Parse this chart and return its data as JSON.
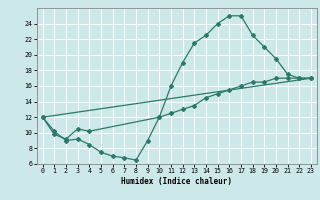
{
  "title": "",
  "xlabel": "Humidex (Indice chaleur)",
  "bg_color": "#cde8e8",
  "grid_color": "#ffffff",
  "line_color": "#2a7a6a",
  "xlim": [
    -0.5,
    23.5
  ],
  "ylim": [
    6,
    26
  ],
  "yticks": [
    6,
    8,
    10,
    12,
    14,
    16,
    18,
    20,
    22,
    24
  ],
  "xticks": [
    0,
    1,
    2,
    3,
    4,
    5,
    6,
    7,
    8,
    9,
    10,
    11,
    12,
    13,
    14,
    15,
    16,
    17,
    18,
    19,
    20,
    21,
    22,
    23
  ],
  "curve1_x": [
    0,
    1,
    2,
    3,
    4,
    10,
    11,
    12,
    13,
    14,
    15,
    16,
    17,
    18,
    19,
    20,
    21,
    22,
    23
  ],
  "curve1_y": [
    12,
    9.8,
    9.2,
    10.5,
    10.2,
    12.0,
    16.0,
    19.0,
    21.5,
    22.5,
    24.0,
    25.0,
    25.0,
    22.5,
    21.0,
    19.5,
    17.5,
    17.0,
    17.0
  ],
  "curve2_x": [
    0,
    1,
    2,
    3,
    4,
    5,
    6,
    7,
    8,
    9,
    10,
    11,
    12,
    13,
    14,
    15,
    16,
    17,
    18,
    19,
    20,
    21,
    22,
    23
  ],
  "curve2_y": [
    12,
    10.2,
    9.0,
    9.2,
    8.5,
    7.5,
    7.0,
    6.8,
    6.5,
    9.0,
    12.0,
    12.5,
    13.0,
    13.5,
    14.5,
    15.0,
    15.5,
    16.0,
    16.5,
    16.5,
    17.0,
    17.0,
    17.0,
    17.0
  ],
  "curve3_x": [
    0,
    23
  ],
  "curve3_y": [
    12,
    17.0
  ]
}
